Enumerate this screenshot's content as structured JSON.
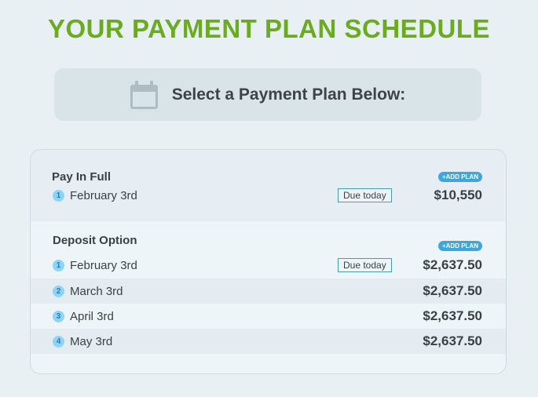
{
  "title": "YOUR PAYMENT PLAN SCHEDULE",
  "banner": {
    "label": "Select a Payment Plan Below:",
    "icon": "calendar-icon"
  },
  "plans": [
    {
      "name": "Pay In Full",
      "add_label": "+ADD PLAN",
      "rows": [
        {
          "num": "1",
          "date": "February 3rd",
          "badge": "Due today",
          "amount": "$10,550"
        }
      ]
    },
    {
      "name": "Deposit Option",
      "add_label": "+ADD PLAN",
      "rows": [
        {
          "num": "1",
          "date": "February 3rd",
          "badge": "Due today",
          "amount": "$2,637.50"
        },
        {
          "num": "2",
          "date": "March 3rd",
          "amount": "$2,637.50"
        },
        {
          "num": "3",
          "date": "April 3rd",
          "amount": "$2,637.50"
        },
        {
          "num": "4",
          "date": "May 3rd",
          "amount": "$2,637.50"
        }
      ]
    }
  ],
  "colors": {
    "title": "#6aab1f",
    "accent": "#3fa6dc"
  }
}
